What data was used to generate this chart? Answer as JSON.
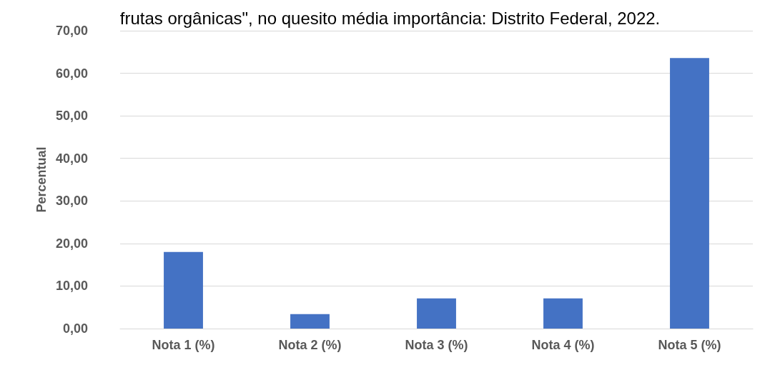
{
  "chart_data": {
    "type": "bar",
    "title": "frutas orgânicas\", no quesito média importância: Distrito Federal, 2022.",
    "ylabel": "Percentual",
    "categories": [
      "Nota 1 (%)",
      "Nota 2 (%)",
      "Nota 3 (%)",
      "Nota 4 (%)",
      "Nota 5 (%)"
    ],
    "values": [
      18.0,
      3.4,
      7.1,
      7.1,
      63.6
    ],
    "color": "#4472c4",
    "ylim": [
      0,
      70
    ],
    "yticks": [
      {
        "value": 0,
        "label": "0,00"
      },
      {
        "value": 10,
        "label": "10,00"
      },
      {
        "value": 20,
        "label": "20,00"
      },
      {
        "value": 30,
        "label": "30,00"
      },
      {
        "value": 40,
        "label": "40,00"
      },
      {
        "value": 50,
        "label": "50,00"
      },
      {
        "value": 60,
        "label": "60,00"
      },
      {
        "value": 70,
        "label": "70,00"
      }
    ],
    "grid": true
  }
}
